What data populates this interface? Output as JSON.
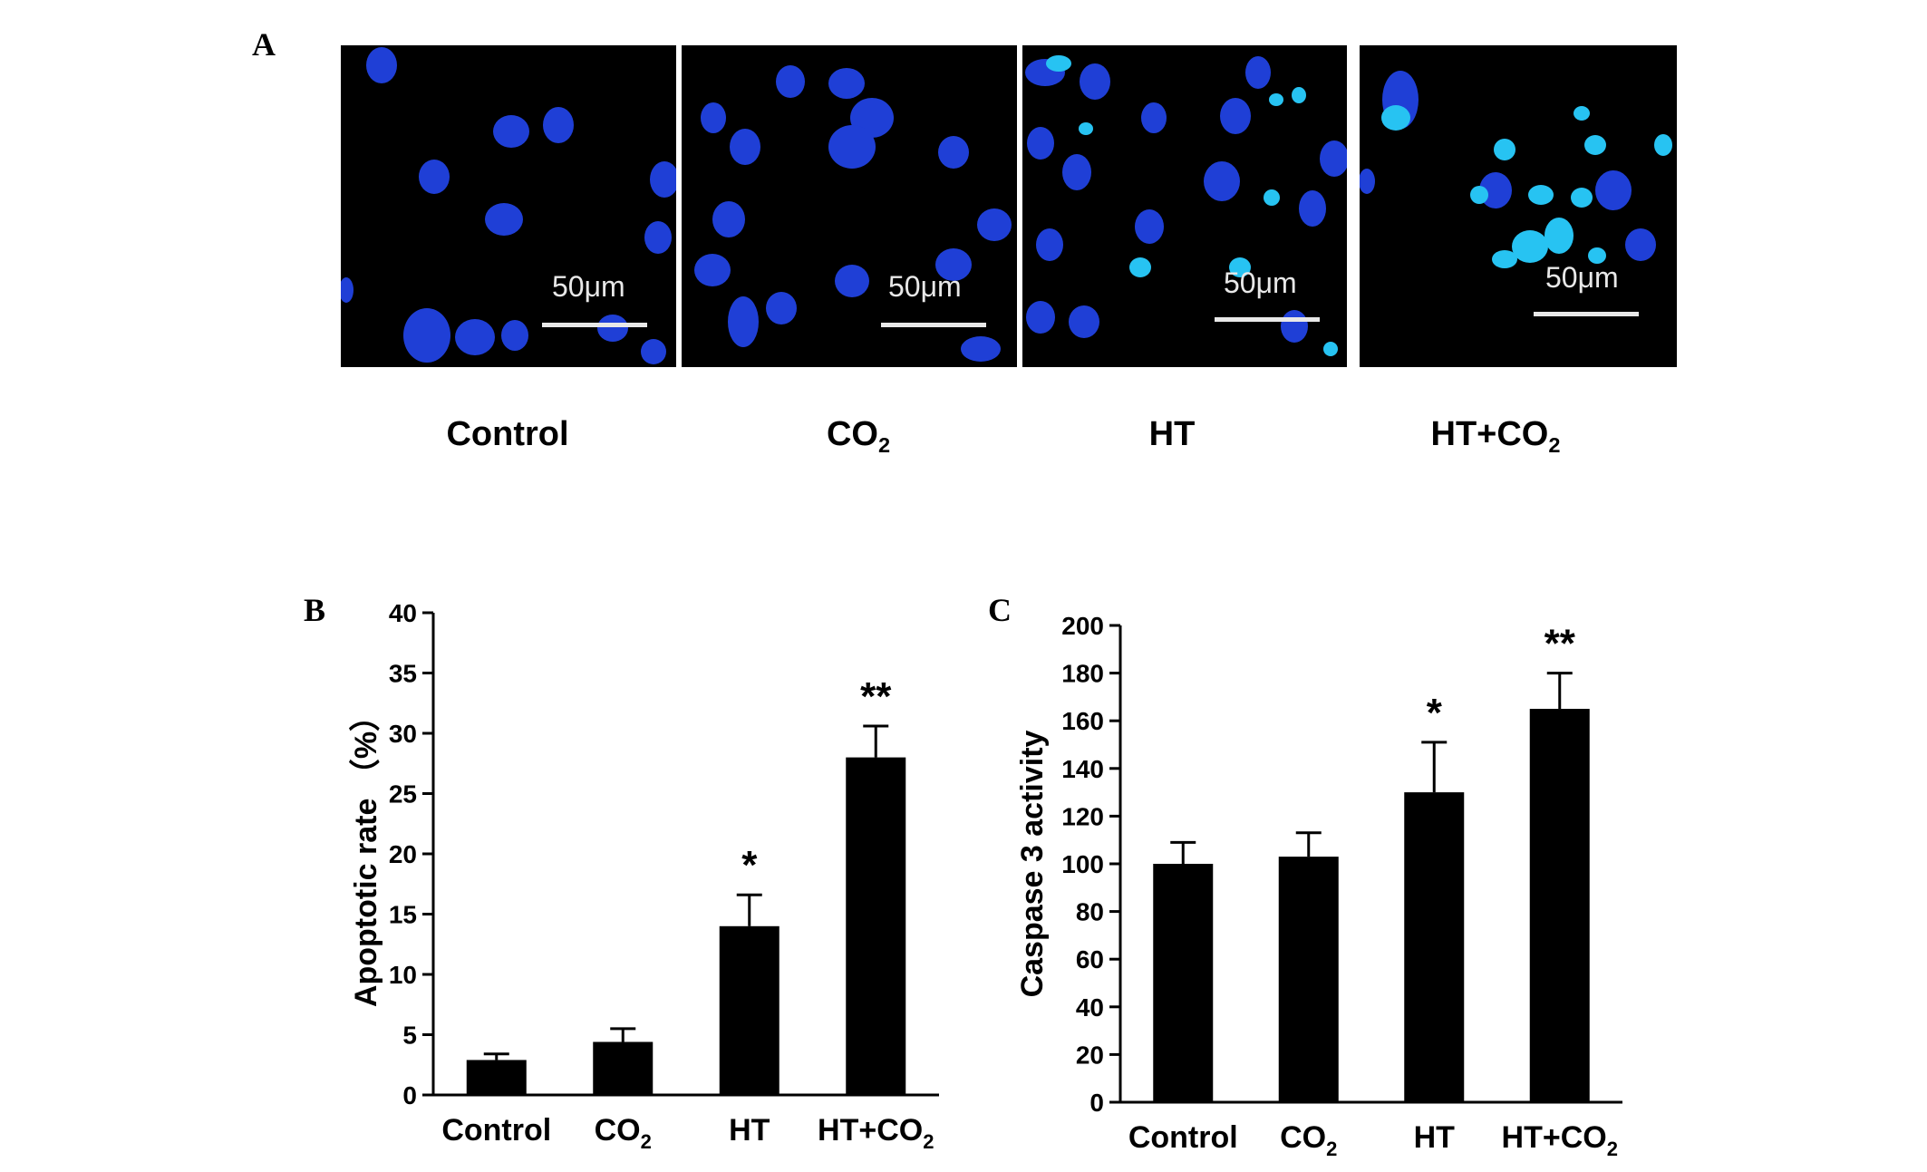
{
  "panels": {
    "a": {
      "letter": "A"
    },
    "b": {
      "letter": "B"
    },
    "c": {
      "letter": "C"
    }
  },
  "microscopy": {
    "images": [
      {
        "condition": "Control",
        "condition_sub": "",
        "scale_label": "50μm"
      },
      {
        "condition": "CO",
        "condition_sub": "2",
        "scale_label": "50μm"
      },
      {
        "condition": "HT",
        "condition_sub": "",
        "scale_label": "50μm"
      },
      {
        "condition": "HT+CO",
        "condition_sub": "2",
        "scale_label": "50μm"
      }
    ],
    "colors": {
      "background": "#000000",
      "nucleus": "#1f3fd6",
      "bright_nucleus": "#27c3f2",
      "scale": "#e8e8e8"
    }
  },
  "chart_data": [
    {
      "type": "bar",
      "panel": "B",
      "categories": [
        "Control",
        "CO2",
        "HT",
        "HT+CO2"
      ],
      "category_labels": [
        {
          "main": "Control",
          "sub": ""
        },
        {
          "main": "CO",
          "sub": "2"
        },
        {
          "main": "HT",
          "sub": ""
        },
        {
          "main": "HT+CO",
          "sub": "2"
        }
      ],
      "values": [
        2.9,
        4.4,
        14.0,
        28.0
      ],
      "errors": [
        0.5,
        1.1,
        2.6,
        2.6
      ],
      "significance": [
        "",
        "",
        "*",
        "**"
      ],
      "ylabel": "Apoptotic rate （%）",
      "xlabel": "",
      "ylim": [
        0,
        40
      ],
      "yticks": [
        0,
        5,
        10,
        15,
        20,
        25,
        30,
        35,
        40
      ],
      "bar_color": "#000000",
      "grid": false
    },
    {
      "type": "bar",
      "panel": "C",
      "categories": [
        "Control",
        "CO2",
        "HT",
        "HT+CO2"
      ],
      "category_labels": [
        {
          "main": "Control",
          "sub": ""
        },
        {
          "main": "CO",
          "sub": "2"
        },
        {
          "main": "HT",
          "sub": ""
        },
        {
          "main": "HT+CO",
          "sub": "2"
        }
      ],
      "values": [
        100,
        103,
        130,
        165
      ],
      "errors": [
        9,
        10,
        21,
        15
      ],
      "significance": [
        "",
        "",
        "*",
        "**"
      ],
      "ylabel": "Caspase 3 activity",
      "xlabel": "",
      "ylim": [
        0,
        200
      ],
      "yticks": [
        0,
        20,
        40,
        60,
        80,
        100,
        120,
        140,
        160,
        180,
        200
      ],
      "bar_color": "#000000",
      "grid": false
    }
  ]
}
